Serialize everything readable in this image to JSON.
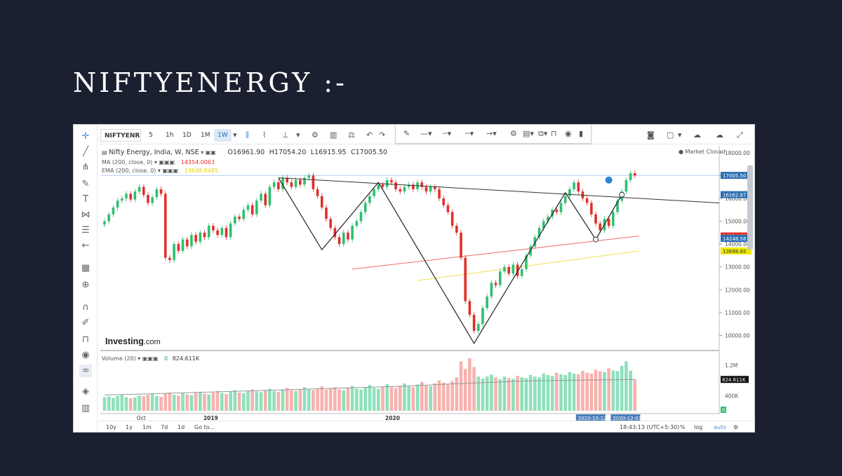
{
  "slide": {
    "title": "NIFTYENERGY :-"
  },
  "toolbar": {
    "symbol": "NIFTYENR",
    "intervals": [
      "5",
      "1h",
      "1D",
      "1M",
      "1W"
    ],
    "active_interval": "1W"
  },
  "legend": {
    "title": "Nifty Energy, India, W, NSE",
    "open": "O16961.90",
    "high": "H17054.20",
    "low": "L16915.95",
    "close": "C17005.50",
    "ma_label": "MA (200, close, 0)",
    "ma_value": "14354.0063",
    "ema_label": "EMA (200, close, 0)",
    "ema_value": "13698.8485",
    "volume_label": "Volume (20)",
    "volume_zero": "0",
    "volume_value": "824.611K"
  },
  "market_status": "Market Closed",
  "logo": {
    "brand": "Investing",
    "suffix": ".com"
  },
  "bottombar": {
    "ranges": [
      "10y",
      "1y",
      "1m",
      "7d",
      "1d",
      "Go to..."
    ],
    "time": "18:43:13 (UTC+5:30)",
    "options": [
      "%",
      "log",
      "auto"
    ]
  },
  "colors": {
    "up": "#2fbf71",
    "down": "#e0302b",
    "ma": "#f08080",
    "ema": "#efe870",
    "vol_up": "#8ee0bb",
    "vol_down": "#f7b2ae",
    "accent": "#2b6fb3",
    "background": "#1b2030"
  },
  "chart_data": [
    {
      "type": "line",
      "title": "Nifty Energy, India, W, NSE",
      "x_tick_labels": [
        "Oct",
        "2019",
        "2020"
      ],
      "y_ticks": [
        10000,
        11000,
        12000,
        13000,
        14000,
        15000,
        16000,
        17000,
        18000
      ],
      "ylim": [
        9400,
        18300
      ],
      "price_labels": [
        {
          "value": 17005.5,
          "text": "17005.50",
          "color": "#2b6fb3"
        },
        {
          "value": 16162.87,
          "text": "16162.87",
          "color": "#2b6fb3"
        },
        {
          "value": 14354.01,
          "text": "14354.01",
          "color": "#e0302b"
        },
        {
          "value": 14248.58,
          "text": "14248.58",
          "color": "#2b6fb3"
        },
        {
          "value": 13698.85,
          "text": "13698.85",
          "color": "#efe800"
        }
      ],
      "date_labels": [
        "2020-10-12",
        "2020-12-07"
      ],
      "closes": [
        15000,
        15300,
        15600,
        15900,
        16000,
        16200,
        15950,
        16300,
        16500,
        16150,
        15800,
        16050,
        16400,
        16200,
        13400,
        13300,
        14000,
        13700,
        14200,
        13900,
        14400,
        14100,
        14500,
        14300,
        14800,
        14600,
        14400,
        14700,
        14300,
        14900,
        15200,
        15100,
        15500,
        15700,
        15300,
        15900,
        16200,
        15700,
        16500,
        16700,
        16400,
        16900,
        16700,
        16500,
        16800,
        16600,
        16900,
        17000,
        16400,
        16100,
        15600,
        15100,
        14700,
        14300,
        14000,
        14500,
        14200,
        14800,
        15000,
        15400,
        15800,
        16100,
        16400,
        16600,
        16500,
        16800,
        16700,
        16400,
        16300,
        16500,
        16600,
        16400,
        16700,
        16500,
        16300,
        16500,
        16400,
        16000,
        15700,
        15400,
        14800,
        14500,
        13400,
        11500,
        10900,
        10200,
        10500,
        11200,
        11700,
        12300,
        12200,
        12800,
        13000,
        12700,
        13100,
        12600,
        12900,
        13500,
        13900,
        14300,
        14700,
        15000,
        15200,
        15500,
        15400,
        15800,
        16100,
        16400,
        16700,
        16300,
        16000,
        15800,
        15300,
        14900,
        14600,
        15100,
        14800,
        15400,
        15900,
        16300,
        16800,
        17100,
        17005
      ],
      "series": [
        {
          "name": "MA (200, close, 0)",
          "x": [
            0,
            1
          ],
          "y": [
            12900,
            14354
          ]
        },
        {
          "name": "EMA (200, close, 0)",
          "x": [
            0,
            1
          ],
          "y": [
            12400,
            13699
          ]
        }
      ],
      "trend_lines": [
        {
          "y": [
            16900,
            13750,
            16700,
            9650,
            16250,
            14200,
            16160
          ]
        },
        {
          "y": [
            16900,
            15800
          ]
        }
      ]
    },
    {
      "type": "bar",
      "title": "Volume (20)",
      "y_tick_labels": [
        "1.2M",
        "400K"
      ],
      "last_value": "824.611K",
      "ylim": [
        0,
        1400000
      ],
      "values": [
        360,
        380,
        340,
        390,
        420,
        360,
        330,
        350,
        400,
        380,
        420,
        440,
        390,
        370,
        450,
        480,
        420,
        400,
        460,
        430,
        410,
        470,
        500,
        450,
        430,
        480,
        520,
        470,
        440,
        500,
        540,
        480,
        460,
        520,
        560,
        510,
        490,
        530,
        580,
        520,
        500,
        560,
        600,
        540,
        520,
        570,
        620,
        560,
        540,
        590,
        640,
        560,
        580,
        620,
        560,
        540,
        600,
        650,
        580,
        560,
        620,
        680,
        600,
        580,
        640,
        700,
        620,
        600,
        660,
        720,
        640,
        620,
        690,
        760,
        680,
        650,
        720,
        800,
        740,
        700,
        780,
        880,
        1300,
        1100,
        1380,
        1150,
        900,
        850,
        900,
        950,
        880,
        830,
        900,
        860,
        840,
        920,
        880,
        860,
        940,
        900,
        880,
        980,
        940,
        920,
        1000,
        960,
        940,
        1020,
        980,
        960,
        1050,
        1000,
        980,
        1080,
        1040,
        1020,
        1120,
        1060,
        1040,
        1180,
        1300,
        1060,
        824
      ],
      "moving_average": [
        420,
        440,
        470,
        500,
        530,
        560,
        590,
        620,
        650,
        700,
        740,
        780,
        800,
        810,
        825
      ]
    }
  ]
}
